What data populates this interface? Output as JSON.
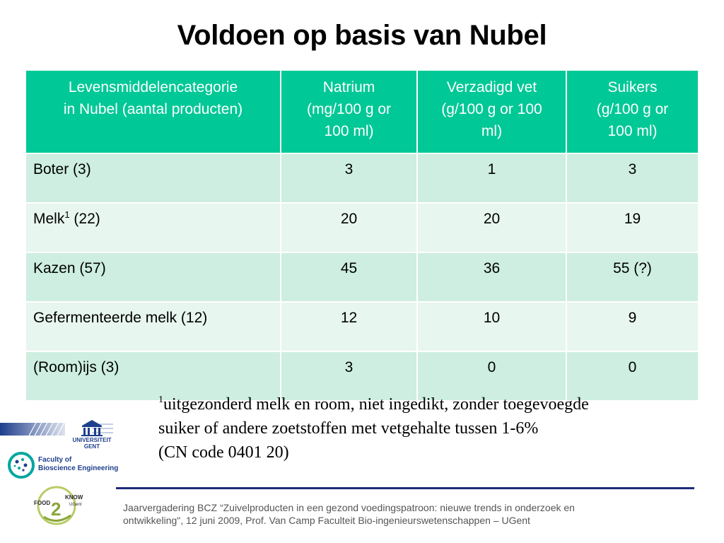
{
  "title": "Voldoen op basis van Nubel",
  "table": {
    "headers": [
      [
        "Levensmiddelencategorie",
        "in Nubel (aantal producten)"
      ],
      [
        "Natrium",
        "(mg/100 g or",
        "100 ml)"
      ],
      [
        "Verzadigd vet",
        "(g/100 g or 100",
        "ml)"
      ],
      [
        "Suikers",
        "(g/100 g or",
        "100 ml)"
      ]
    ],
    "rows": [
      {
        "category": "Boter (3)",
        "sup": "",
        "category_suffix": "",
        "natrium": "3",
        "vet": "1",
        "suikers": "3"
      },
      {
        "category": "Melk",
        "sup": "1",
        "category_suffix": " (22)",
        "natrium": "20",
        "vet": "20",
        "suikers": "19"
      },
      {
        "category": "Kazen (57)",
        "sup": "",
        "category_suffix": "",
        "natrium": "45",
        "vet": "36",
        "suikers": "55 (?)"
      },
      {
        "category": "Gefermenteerde melk (12)",
        "sup": "",
        "category_suffix": "",
        "natrium": "12",
        "vet": "10",
        "suikers": "9"
      },
      {
        "category": "(Room)ijs (3)",
        "sup": "",
        "category_suffix": "",
        "natrium": "3",
        "vet": "0",
        "suikers": "0"
      }
    ]
  },
  "footnote": {
    "marker": "1",
    "line1": "uitgezonderd melk en room, niet ingedikt, zonder toegevoegde",
    "line2": "suiker of andere zoetstoffen met vetgehalte tussen 1-6%",
    "line3": "(CN code 0401 20)"
  },
  "logos": {
    "ugent": [
      "UNIVERSITEIT",
      "GENT"
    ],
    "faculty": [
      "Faculty of",
      "Bioscience Engineering"
    ],
    "food2know": {
      "food": "FOOD",
      "two": "2",
      "know": "KNOW",
      "ugent": "UGent"
    }
  },
  "footer": {
    "line1": "Jaarvergadering BCZ “Zuivelproducten in een gezond voedingspatroon: nieuwe trends in onderzoek en",
    "line2": "ontwikkeling\", 12 juni 2009, Prof. Van Camp  Faculteit Bio-ingenieurswetenschappen – UGent"
  },
  "colors": {
    "header_bg": "#00c896",
    "row_dark": "#cdeee0",
    "row_light": "#e7f6ef",
    "rule": "#1e2a7a",
    "ugent_blue": "#1e3f8c"
  }
}
